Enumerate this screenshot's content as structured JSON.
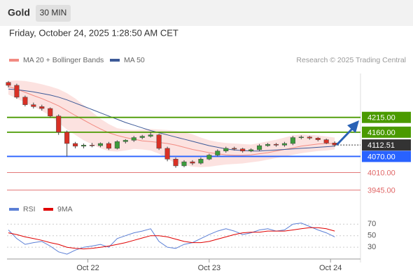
{
  "header": {
    "symbol": "Gold",
    "interval": "30 MIN",
    "datetime": "Friday, October 24, 2025 1:28:50 AM CET",
    "source": "Research © 2025 Trading Central"
  },
  "chart_data": [
    {
      "type": "candlestick",
      "series_legend": [
        {
          "name": "MA 20 + Bollinger Bands",
          "color": "#f28b82"
        },
        {
          "name": "MA 50",
          "color": "#3d5a98"
        }
      ],
      "up_color": "#3c9c3c",
      "down_color": "#d93025",
      "xlim": [
        -0.5,
        42.5
      ],
      "xticks": [
        {
          "value": 9.5,
          "label": "Oct 22"
        },
        {
          "value": 24,
          "label": "Oct 23"
        },
        {
          "value": 38.5,
          "label": "Oct 24"
        }
      ],
      "ylim": [
        3910,
        4365
      ],
      "open": [
        4345,
        4334,
        4290,
        4262,
        4255,
        4248,
        4220,
        4160,
        4118,
        4108,
        4112,
        4110,
        4118,
        4100,
        4125,
        4130,
        4140,
        4145,
        4150,
        4100,
        4060,
        4035,
        4050,
        4045,
        4060,
        4075,
        4090,
        4100,
        4098,
        4090,
        4095,
        4110,
        4115,
        4112,
        4118,
        4140,
        4142,
        4138,
        4132,
        4120
      ],
      "high": [
        4350,
        4340,
        4296,
        4270,
        4262,
        4252,
        4226,
        4166,
        4124,
        4118,
        4120,
        4122,
        4124,
        4130,
        4134,
        4146,
        4150,
        4160,
        4154,
        4106,
        4066,
        4056,
        4056,
        4066,
        4080,
        4096,
        4106,
        4106,
        4102,
        4100,
        4116,
        4120,
        4120,
        4124,
        4146,
        4148,
        4146,
        4142,
        4136,
        4126
      ],
      "low": [
        4326,
        4284,
        4256,
        4248,
        4240,
        4214,
        4150,
        4070,
        4100,
        4100,
        4104,
        4104,
        4094,
        4096,
        4118,
        4124,
        4134,
        4140,
        4094,
        4052,
        4028,
        4030,
        4038,
        4040,
        4056,
        4070,
        4084,
        4092,
        4084,
        4086,
        4090,
        4106,
        4106,
        4106,
        4112,
        4134,
        4132,
        4126,
        4116,
        4106
      ],
      "close": [
        4334,
        4290,
        4262,
        4255,
        4248,
        4220,
        4160,
        4118,
        4108,
        4112,
        4110,
        4118,
        4100,
        4125,
        4130,
        4140,
        4145,
        4150,
        4100,
        4060,
        4035,
        4050,
        4045,
        4060,
        4075,
        4090,
        4100,
        4098,
        4090,
        4095,
        4110,
        4115,
        4112,
        4118,
        4140,
        4142,
        4138,
        4132,
        4120,
        4112.51
      ],
      "ma20": [
        4330,
        4320,
        4308,
        4296,
        4285,
        4272,
        4258,
        4240,
        4222,
        4205,
        4188,
        4172,
        4158,
        4148,
        4140,
        4134,
        4128,
        4125,
        4122,
        4118,
        4112,
        4104,
        4096,
        4090,
        4084,
        4080,
        4076,
        4074,
        4074,
        4076,
        4080,
        4084,
        4090,
        4096,
        4102,
        4108,
        4112,
        4116,
        4118,
        4118
      ],
      "ma50": [
        4320,
        4318,
        4314,
        4310,
        4304,
        4298,
        4290,
        4280,
        4268,
        4256,
        4244,
        4232,
        4220,
        4208,
        4196,
        4186,
        4176,
        4166,
        4158,
        4150,
        4142,
        4134,
        4126,
        4118,
        4110,
        4104,
        4098,
        4094,
        4092,
        4090,
        4090,
        4092,
        4094,
        4096,
        4098,
        4100,
        4102,
        4104,
        4106,
        4108
      ],
      "bb_upper": [
        4350,
        4352,
        4350,
        4345,
        4338,
        4330,
        4320,
        4305,
        4285,
        4260,
        4235,
        4210,
        4190,
        4175,
        4170,
        4168,
        4170,
        4172,
        4170,
        4168,
        4165,
        4160,
        4152,
        4140,
        4130,
        4124,
        4120,
        4118,
        4116,
        4114,
        4120,
        4126,
        4132,
        4140,
        4148,
        4152,
        4150,
        4148,
        4144,
        4140
      ],
      "bb_lower": [
        4300,
        4285,
        4270,
        4255,
        4240,
        4220,
        4195,
        4170,
        4150,
        4130,
        4115,
        4100,
        4090,
        4088,
        4092,
        4098,
        4096,
        4092,
        4080,
        4060,
        4045,
        4038,
        4032,
        4030,
        4032,
        4036,
        4040,
        4042,
        4044,
        4048,
        4052,
        4058,
        4064,
        4070,
        4076,
        4082,
        4086,
        4090,
        4092,
        4096
      ],
      "levels": [
        {
          "value": 4215,
          "label": "4215.00",
          "color": "#4a9a00",
          "style": "box"
        },
        {
          "value": 4160,
          "label": "4160.00",
          "color": "#4a9a00",
          "style": "box"
        },
        {
          "value": 4070,
          "label": "4070.00",
          "color": "#2962ff",
          "style": "box"
        },
        {
          "value": 4010,
          "label": "4010.00",
          "color": "#e06666",
          "style": "text"
        },
        {
          "value": 3945,
          "label": "3945.00",
          "color": "#e06666",
          "style": "text"
        }
      ],
      "last_price": 4112.51
    },
    {
      "type": "line",
      "ylim": [
        12,
        80
      ],
      "yticks": [
        30,
        50,
        70
      ],
      "series": [
        {
          "name": "RSI",
          "color": "#5b7fd6",
          "values": [
            60,
            45,
            35,
            38,
            40,
            32,
            22,
            18,
            25,
            30,
            32,
            35,
            30,
            45,
            50,
            55,
            58,
            62,
            40,
            30,
            28,
            35,
            38,
            45,
            52,
            58,
            62,
            58,
            52,
            55,
            60,
            62,
            58,
            60,
            70,
            72,
            66,
            60,
            55,
            48
          ]
        },
        {
          "name": "9MA",
          "color": "#e00000",
          "values": [
            55,
            52,
            48,
            45,
            42,
            38,
            35,
            30,
            28,
            27,
            28,
            30,
            32,
            35,
            38,
            42,
            46,
            50,
            50,
            48,
            44,
            40,
            38,
            38,
            40,
            44,
            48,
            52,
            55,
            56,
            56,
            58,
            58,
            58,
            60,
            62,
            64,
            64,
            62,
            58
          ]
        }
      ]
    }
  ]
}
